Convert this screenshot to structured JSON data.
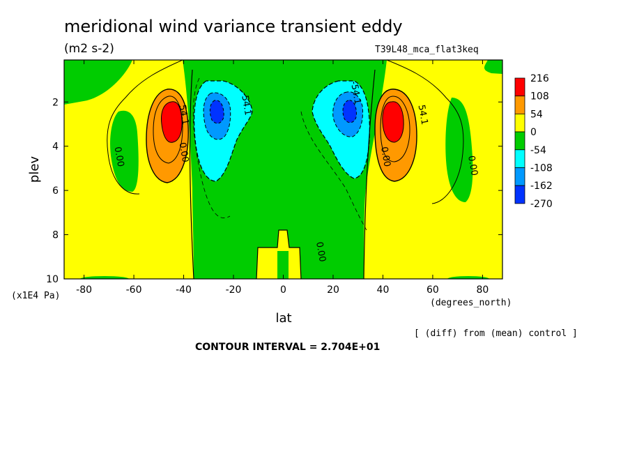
{
  "page": {
    "title": "meridional wind variance transient eddy",
    "units": "(m2 s-2)",
    "run_id": "T39L48_mca_flat3keq",
    "note": "[ (diff) from (mean) control ]",
    "contour_interval": "CONTOUR INTERVAL = 2.704E+01"
  },
  "chart_data": {
    "type": "heatmap",
    "xlabel": "lat",
    "ylabel": "plev",
    "x_unit": "(degrees_north)",
    "y_unit": "(x1E4 Pa)",
    "xlim": [
      -88,
      88
    ],
    "ylim": [
      10,
      0.1
    ],
    "x_ticks": [
      -80,
      -60,
      -40,
      -20,
      0,
      20,
      40,
      60,
      80
    ],
    "y_ticks": [
      2,
      4,
      6,
      8,
      10
    ],
    "colorbar": {
      "labels": [
        "216",
        "108",
        "54",
        "0",
        "-54",
        "-108",
        "-162",
        "-270"
      ],
      "colors": [
        "#ff0000",
        "#ff9900",
        "#ffff00",
        "#00cc00",
        "#00ffff",
        "#0099ff",
        "#0033ff"
      ]
    },
    "contour_labels": [
      {
        "lat": -67,
        "plev": 4.5,
        "text": "0.00"
      },
      {
        "lat": -41,
        "plev": 4.3,
        "text": "0.00"
      },
      {
        "lat": -41,
        "plev": 2.6,
        "text": "54.1"
      },
      {
        "lat": -16,
        "plev": 2.1,
        "text": "-54.1"
      },
      {
        "lat": 28,
        "plev": 1.6,
        "text": "-54.1"
      },
      {
        "lat": 40,
        "plev": 4.5,
        "text": "0.00"
      },
      {
        "lat": 55,
        "plev": 2.6,
        "text": "54.1"
      },
      {
        "lat": 75,
        "plev": 4.9,
        "text": "0.00"
      },
      {
        "lat": 14,
        "plev": 8.8,
        "text": "0.00"
      }
    ],
    "features": [
      {
        "name": "positive maximum",
        "lat": -44,
        "plev": 2.7,
        "value": 216
      },
      {
        "name": "negative minimum",
        "lat": -27,
        "plev": 2.5,
        "value": -162
      },
      {
        "name": "negative minimum",
        "lat": 27,
        "plev": 2.5,
        "value": -162
      },
      {
        "name": "positive maximum",
        "lat": 44,
        "plev": 2.7,
        "value": 216
      }
    ],
    "grid": false
  }
}
